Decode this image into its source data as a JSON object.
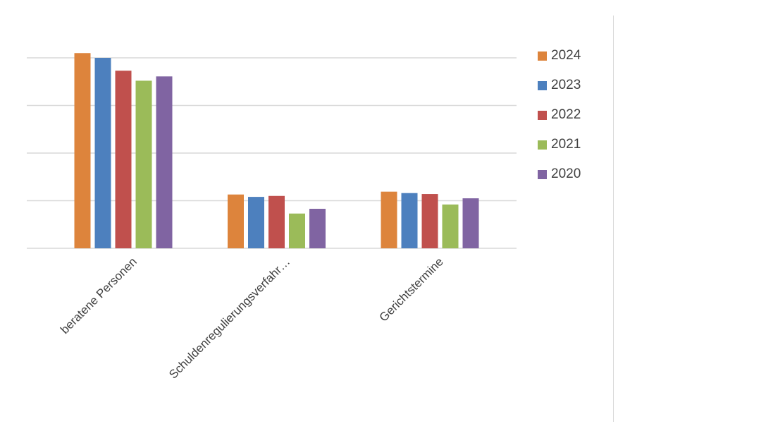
{
  "chart_data": {
    "type": "bar",
    "title": "",
    "xlabel": "",
    "ylabel": "",
    "categories": [
      "beratene Personen",
      "Schuldenregulierungsverfahr…",
      "Gerichtstermine"
    ],
    "ylim": [
      0,
      4
    ],
    "y_tick_labels_shown": false,
    "grid": true,
    "legend_position": "right",
    "series": [
      {
        "name": "2024",
        "color": "#DD843C",
        "values": [
          4.1,
          1.13,
          1.19
        ]
      },
      {
        "name": "2023",
        "color": "#4D80BE",
        "values": [
          4.0,
          1.08,
          1.16
        ]
      },
      {
        "name": "2022",
        "color": "#C0504D",
        "values": [
          3.73,
          1.1,
          1.14
        ]
      },
      {
        "name": "2021",
        "color": "#9BBB59",
        "values": [
          3.52,
          0.73,
          0.92
        ]
      },
      {
        "name": "2020",
        "color": "#8064A2",
        "values": [
          3.61,
          0.83,
          1.05
        ]
      }
    ]
  }
}
